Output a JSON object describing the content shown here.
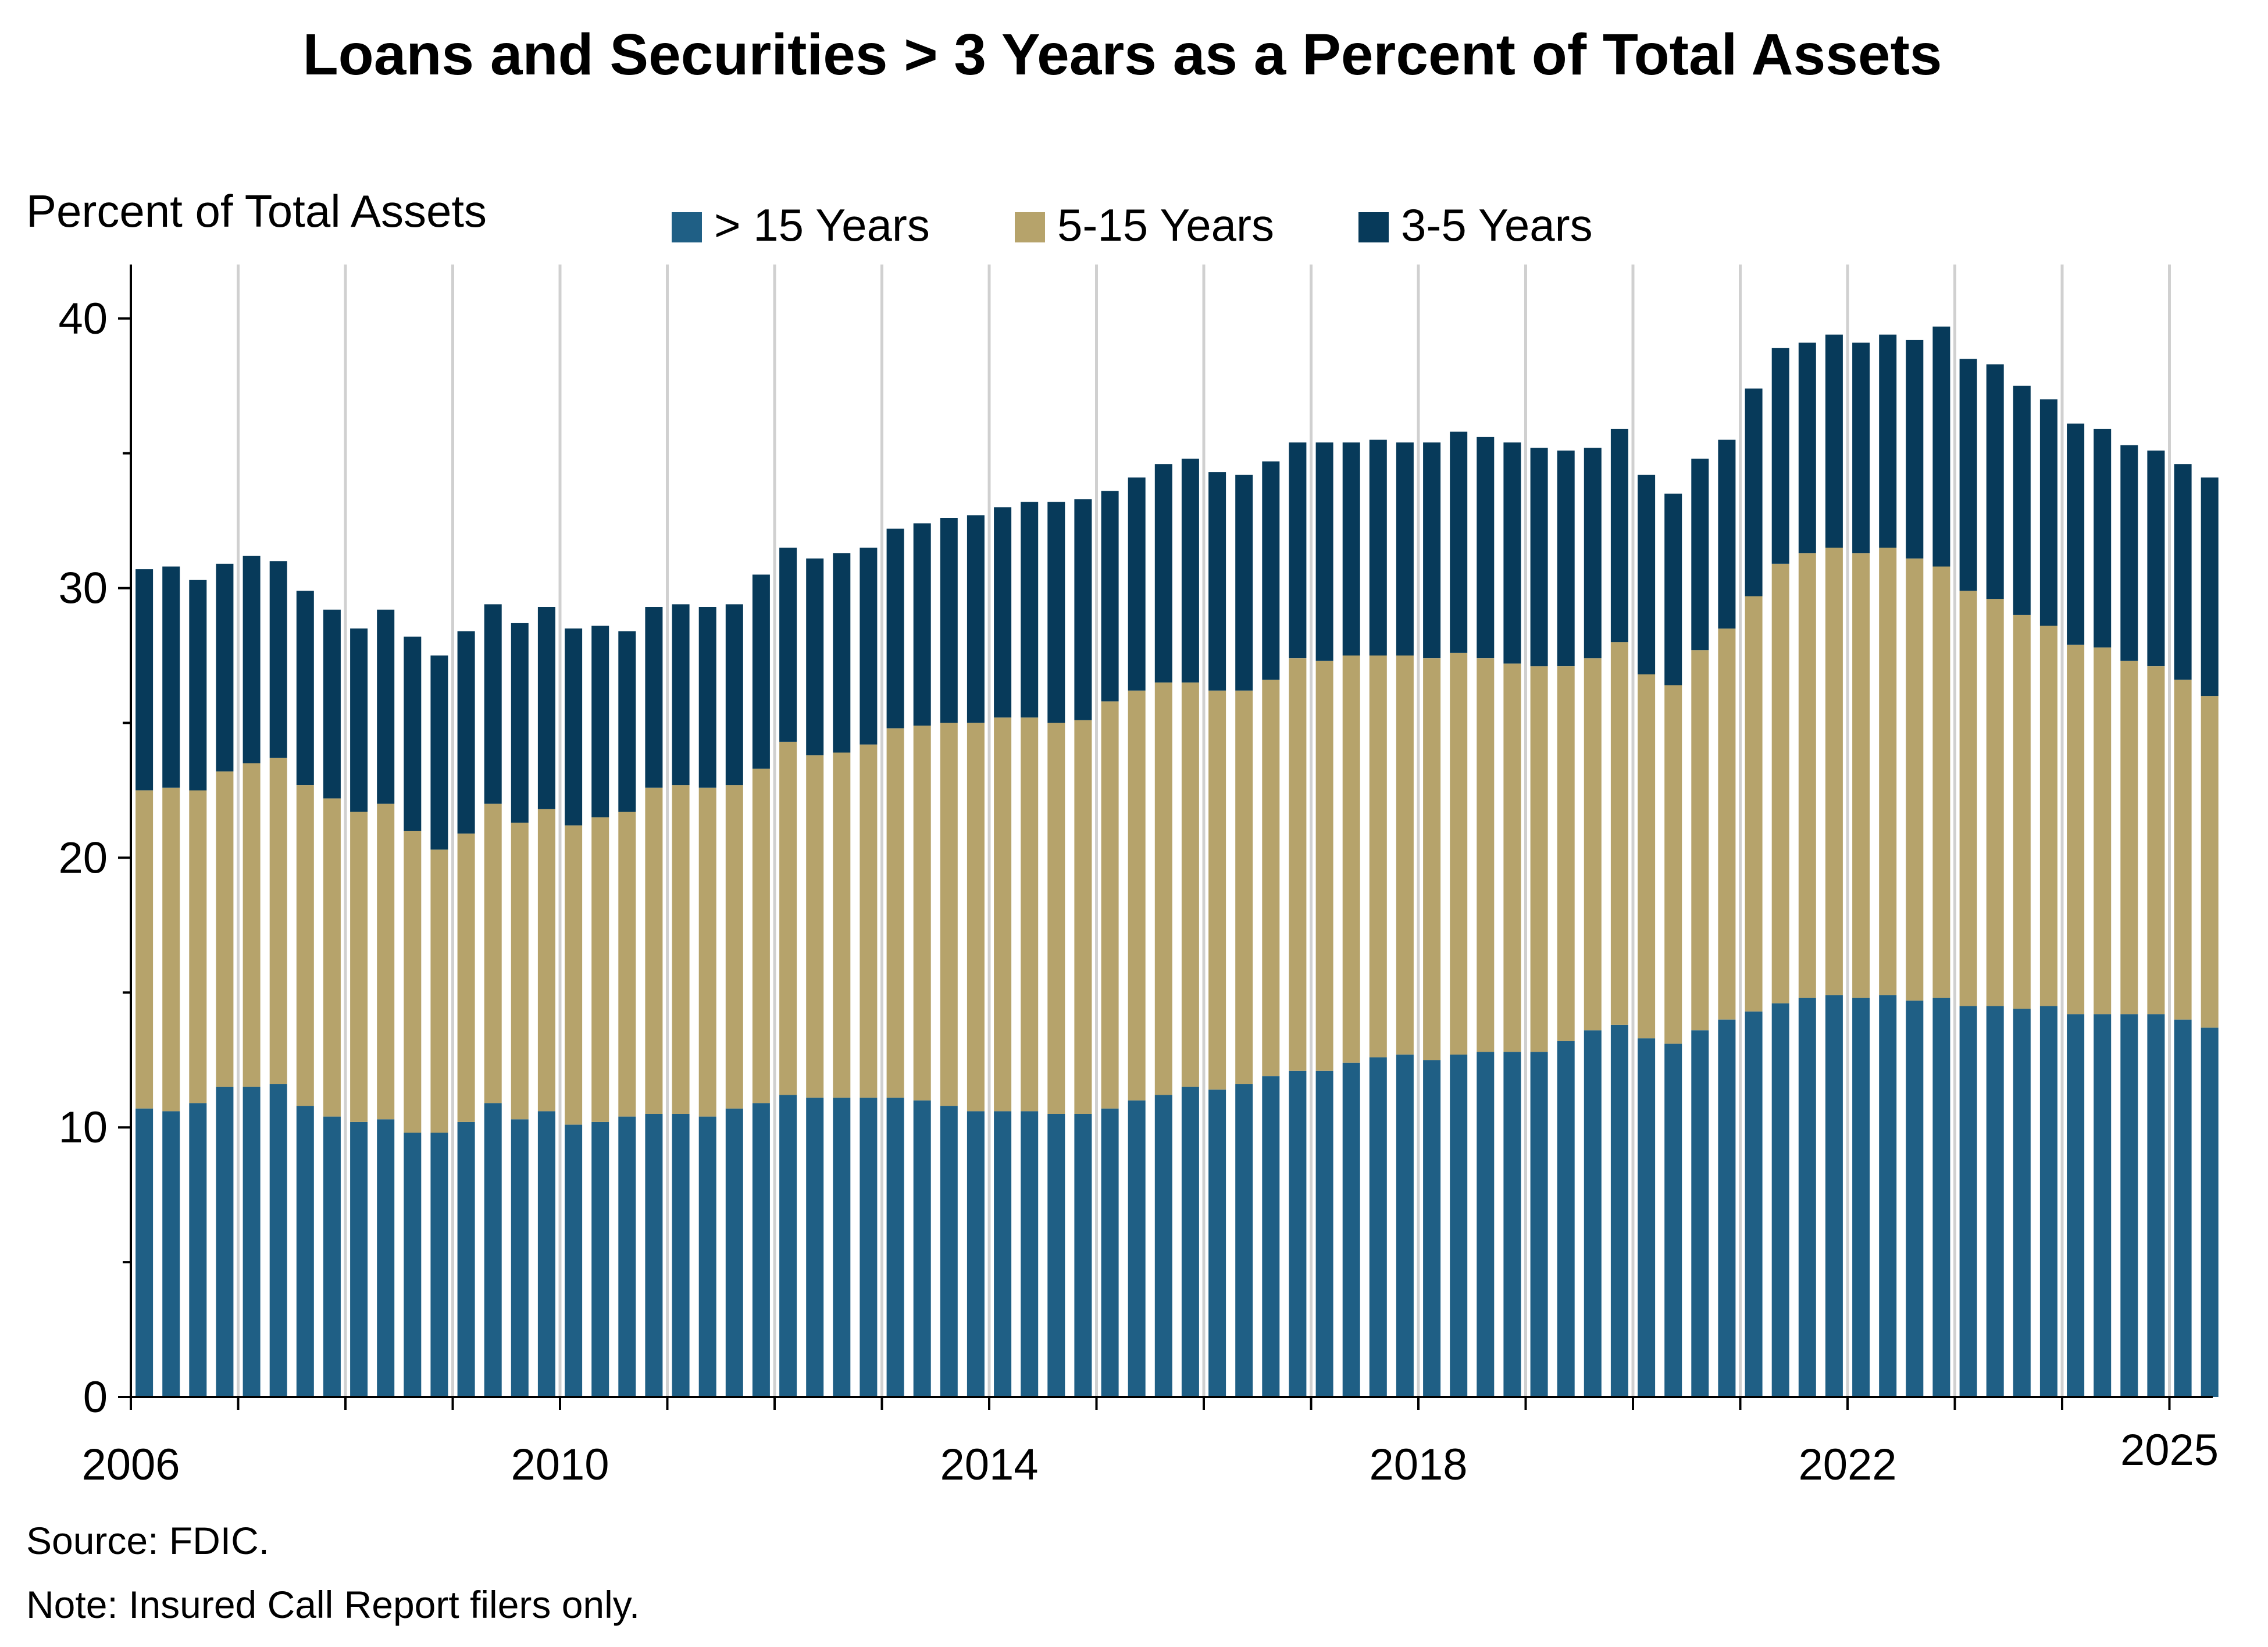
{
  "colors": {
    "gt15": "#1f5f85",
    "y5_15": "#b6a36b",
    "y3_5": "#073a5a",
    "gridline": "#d0d0d0",
    "axis": "#000000"
  },
  "chart_data": {
    "type": "bar",
    "stacked": true,
    "title": "Loans and Securities > 3 Years as a Percent of Total Assets",
    "ylabel": "Percent of Total Assets",
    "xlabel": "",
    "ylim": [
      0,
      42
    ],
    "yticks": [
      0,
      10,
      20,
      30,
      40
    ],
    "xticks": [
      "2006",
      "2010",
      "2014",
      "2018",
      "2022",
      "2025"
    ],
    "x_start": "2006",
    "frequency": "quarterly",
    "grid": "vertical lines at year boundaries",
    "legend": "top, horizontal",
    "series": [
      {
        "name": "> 15 Years",
        "color_key": "gt15",
        "values": [
          10.7,
          10.6,
          10.9,
          11.5,
          11.5,
          11.6,
          10.8,
          10.4,
          10.2,
          10.3,
          9.8,
          9.8,
          10.2,
          10.9,
          10.3,
          10.6,
          10.1,
          10.2,
          10.4,
          10.5,
          10.5,
          10.4,
          10.7,
          10.9,
          11.2,
          11.1,
          11.1,
          11.1,
          11.1,
          11.0,
          10.8,
          10.6,
          10.6,
          10.6,
          10.5,
          10.5,
          10.7,
          11.0,
          11.2,
          11.5,
          11.4,
          11.6,
          11.9,
          12.1,
          12.1,
          12.4,
          12.6,
          12.7,
          12.5,
          12.7,
          12.8,
          12.8,
          12.8,
          13.2,
          13.6,
          13.8,
          13.3,
          13.1,
          13.6,
          14.0,
          14.3,
          14.6,
          14.8,
          14.9,
          14.8,
          14.9,
          14.7,
          14.8,
          14.5,
          14.5,
          14.4,
          14.5,
          14.2,
          14.2,
          14.2,
          14.2,
          14.0,
          13.7
        ]
      },
      {
        "name": "5-15 Years",
        "color_key": "y5_15",
        "values": [
          11.8,
          12.0,
          11.6,
          11.7,
          12.0,
          12.1,
          11.9,
          11.8,
          11.5,
          11.7,
          11.2,
          10.5,
          10.7,
          11.1,
          11.0,
          11.2,
          11.1,
          11.3,
          11.3,
          12.1,
          12.2,
          12.2,
          12.0,
          12.4,
          13.1,
          12.7,
          12.8,
          13.1,
          13.7,
          13.9,
          14.2,
          14.4,
          14.6,
          14.6,
          14.5,
          14.6,
          15.1,
          15.2,
          15.3,
          15.0,
          14.8,
          14.6,
          14.7,
          15.3,
          15.2,
          15.1,
          14.9,
          14.8,
          14.9,
          14.9,
          14.6,
          14.4,
          14.3,
          13.9,
          13.8,
          14.2,
          13.5,
          13.3,
          14.1,
          14.5,
          15.4,
          16.3,
          16.5,
          16.6,
          16.5,
          16.6,
          16.4,
          16.0,
          15.4,
          15.1,
          14.6,
          14.1,
          13.7,
          13.6,
          13.1,
          12.9,
          12.6,
          12.3
        ]
      },
      {
        "name": "3-5 Years",
        "color_key": "y3_5",
        "values": [
          8.2,
          8.2,
          7.8,
          7.7,
          7.7,
          7.3,
          7.2,
          7.0,
          6.8,
          7.2,
          7.2,
          7.2,
          7.5,
          7.4,
          7.4,
          7.5,
          7.3,
          7.1,
          6.7,
          6.7,
          6.7,
          6.7,
          6.7,
          7.2,
          7.2,
          7.3,
          7.4,
          7.3,
          7.4,
          7.5,
          7.6,
          7.7,
          7.8,
          8.0,
          8.2,
          8.2,
          7.8,
          7.9,
          8.1,
          8.3,
          8.1,
          8.0,
          8.1,
          8.0,
          8.1,
          7.9,
          8.0,
          7.9,
          8.0,
          8.2,
          8.2,
          8.2,
          8.1,
          8.0,
          7.8,
          7.9,
          7.4,
          7.1,
          7.1,
          7.0,
          7.7,
          8.0,
          7.8,
          7.9,
          7.8,
          7.9,
          8.1,
          8.9,
          8.6,
          8.7,
          8.5,
          8.4,
          8.2,
          8.1,
          8.0,
          8.0,
          8.0,
          8.1
        ]
      }
    ]
  },
  "footnotes": {
    "source": "Source: FDIC.",
    "note": "Note: Insured Call Report filers only."
  }
}
